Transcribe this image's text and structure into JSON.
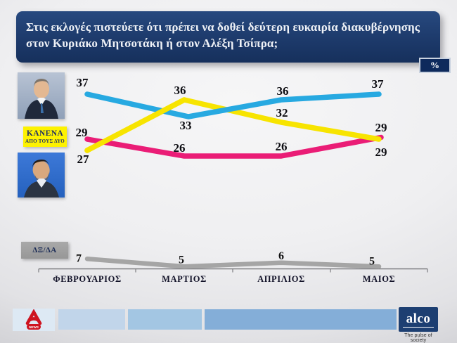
{
  "title": {
    "line1": "Στις εκλογές πιστεύετε ότι πρέπει να δοθεί δεύτερη ευκαιρία διακυβέρνησης",
    "line2": "στον Κυριάκο Μητσοτάκη ή στον Αλέξη Τσίπρα;"
  },
  "percent_badge": "%",
  "legend": {
    "none_line1": "ΚΑΝΕΝΑ",
    "none_line2": "ΑΠΟ ΤΟΥΣ ΔΥΟ",
    "dxda": "ΔΞ/ΔΑ"
  },
  "chart_data": {
    "type": "line",
    "unit": "%",
    "title": "Στις εκλογές πιστεύετε ότι πρέπει να δοθεί δεύτερη ευκαιρία διακυβέρνησης στον Κυριάκο Μητσοτάκη ή στον Αλέξη Τσίπρα;",
    "categories": [
      "ΦΕΒΡΟΥΑΡΙΟΣ",
      "ΜΑΡΤΙΟΣ",
      "ΑΠΡΙΛΙΟΣ",
      "ΜΑΙΟΣ"
    ],
    "series": [
      {
        "name": "Κυριάκος Μητσοτάκης",
        "color": "#27a9e1",
        "values": [
          37,
          33,
          36,
          37
        ]
      },
      {
        "name": "ΚΑΝΕΝΑ ΑΠΟ ΤΟΥΣ ΔΥΟ",
        "color": "#f7e400",
        "values": [
          27,
          36,
          32,
          29
        ]
      },
      {
        "name": "Αλέξης Τσίπρας",
        "color": "#ea1d76",
        "values": [
          29,
          26,
          26,
          29
        ]
      },
      {
        "name": "ΔΞ/ΔΑ",
        "color": "#a5a5a5",
        "values": [
          7,
          5,
          6,
          5
        ]
      }
    ],
    "legend_position": "left",
    "grid": false,
    "data_labels": true
  },
  "footer": {
    "alpha_news": "NEWS",
    "alco": "alco",
    "alco_tagline": "The pulse of society"
  }
}
